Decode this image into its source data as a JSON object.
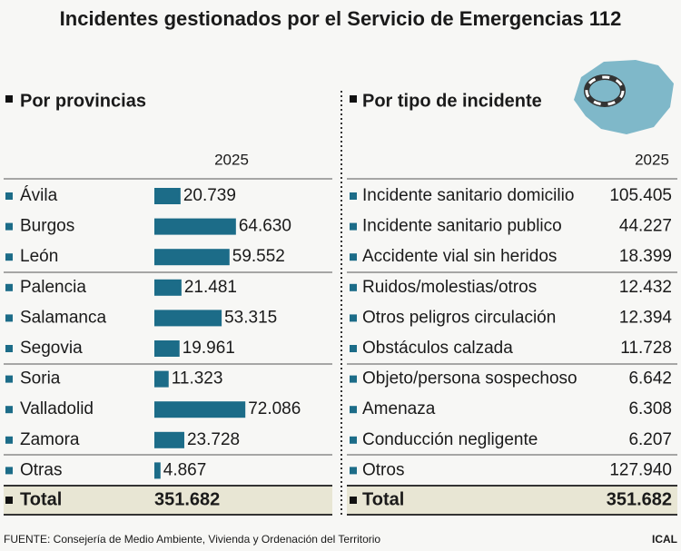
{
  "title": "Incidentes gestionados por el Servicio de Emergencias 112",
  "source": "FUENTE: Consejería de Medio Ambiente, Vivienda y Ordenación del Territorio",
  "credit": "ICAL",
  "chart_data": [
    {
      "type": "bar",
      "title": "Por provincias",
      "subtitle": "2025",
      "categories": [
        "Ávila",
        "Burgos",
        "León",
        "Palencia",
        "Salamanca",
        "Segovia",
        "Soria",
        "Valladolid",
        "Zamora",
        "Otras"
      ],
      "values": [
        20739,
        64630,
        59552,
        21481,
        53315,
        19961,
        11323,
        72086,
        23728,
        4867
      ],
      "value_labels": [
        "20.739",
        "64.630",
        "59.552",
        "21.481",
        "53.315",
        "19.961",
        "11.323",
        "72.086",
        "23.728",
        "4.867"
      ],
      "color": "#1c6c88",
      "total_label": "Total",
      "total_value_label": "351.682"
    },
    {
      "type": "table",
      "title": "Por tipo de incidente",
      "subtitle": "2025",
      "rows": [
        [
          "Incidente sanitario domicilio",
          "105.405"
        ],
        [
          "Incidente sanitario publico",
          "44.227"
        ],
        [
          "Accidente vial sin heridos",
          "18.399"
        ],
        [
          "Ruidos/molestias/otros",
          "12.432"
        ],
        [
          "Otros peligros circulación",
          "12.394"
        ],
        [
          "Obstáculos calzada",
          "11.728"
        ],
        [
          "Objeto/persona sospechoso",
          "6.642"
        ],
        [
          "Amenaza",
          "6.308"
        ],
        [
          "Conducción negligente",
          "6.207"
        ],
        [
          "Otros",
          "127.940"
        ]
      ],
      "total_label": "Total",
      "total_value_label": "351.682"
    }
  ]
}
